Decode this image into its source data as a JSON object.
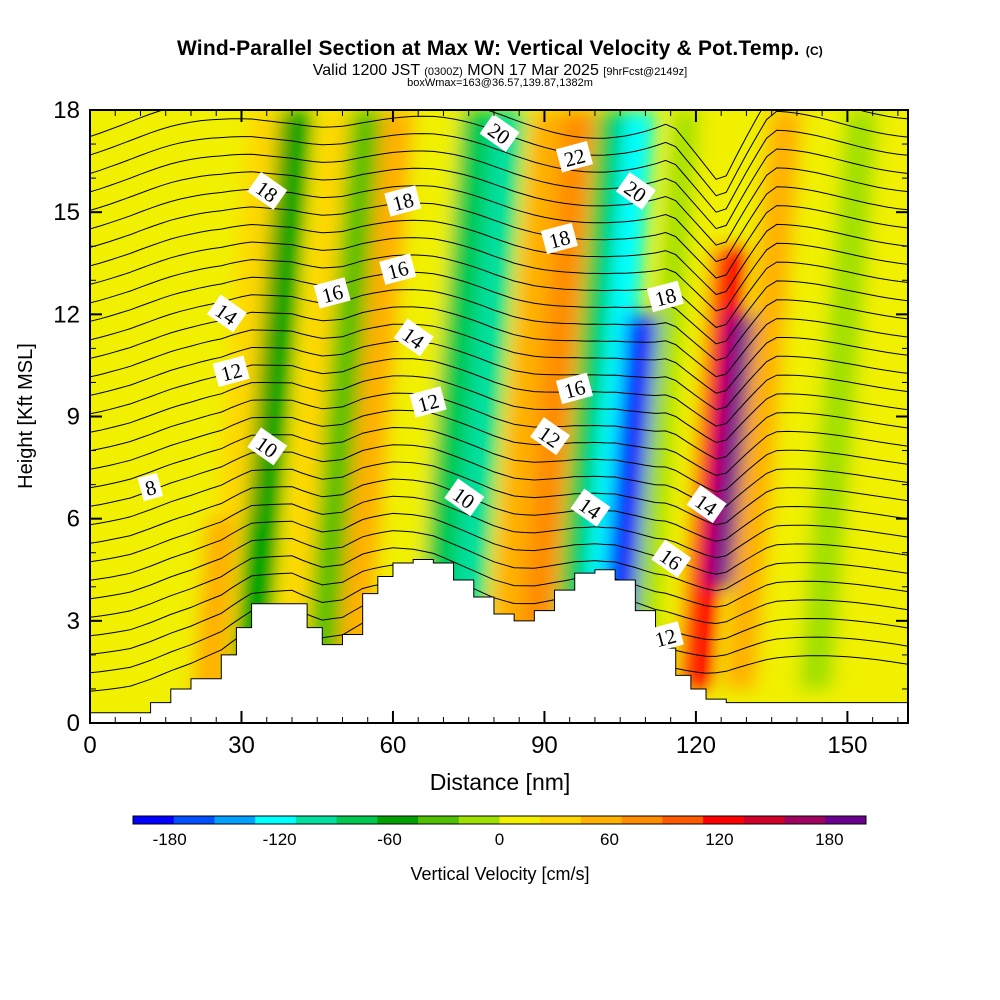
{
  "title": {
    "main": "Wind-Parallel Section at Max W: Vertical Velocity & Pot.Temp.",
    "copyright": "(C)",
    "valid_prefix": "Valid 1200 JST",
    "valid_utc": "(0300Z)",
    "valid_date": "MON 17 Mar 2025",
    "forecast": "[9hrFcst@2149z]",
    "box_info": "boxWmax=163@36.57,139.87,1382m"
  },
  "colorbar": {
    "label": "Vertical Velocity [cm/s]",
    "tick_labels": [
      "-180",
      "-120",
      "-60",
      "0",
      "60",
      "120",
      "180"
    ],
    "tick_values": [
      -180,
      -120,
      -60,
      0,
      60,
      120,
      180
    ],
    "range": [
      -200,
      200
    ],
    "colors": [
      "#0000ff",
      "#0050ff",
      "#00a0ff",
      "#00ffff",
      "#00e0a0",
      "#00c850",
      "#00a000",
      "#50c000",
      "#a0e000",
      "#f0f000",
      "#ffd700",
      "#ffb000",
      "#ff8c00",
      "#ff5a00",
      "#ff0000",
      "#d0002a",
      "#a00060",
      "#6a0090"
    ]
  },
  "chart_data": {
    "type": "heatmap",
    "title": "Wind-Parallel Section at Max W: Vertical Velocity & Pot.Temp.",
    "xlabel": "Distance [nm]",
    "ylabel": "Height [Kft MSL]",
    "xlim": [
      0,
      162
    ],
    "ylim": [
      0,
      18
    ],
    "x_ticks": [
      "0",
      "30",
      "60",
      "90",
      "120",
      "150"
    ],
    "y_ticks": [
      "0",
      "3",
      "6",
      "9",
      "12",
      "15",
      "18"
    ],
    "terrain_profile": {
      "x": [
        0,
        8,
        12,
        16,
        20,
        26,
        29,
        32,
        36,
        40,
        43,
        46,
        50,
        54,
        57,
        60,
        64,
        68,
        72,
        76,
        80,
        84,
        88,
        92,
        96,
        100,
        104,
        108,
        112,
        116,
        119,
        122,
        126,
        130,
        140,
        150,
        162
      ],
      "height_kft": [
        0.3,
        0.3,
        0.6,
        1.0,
        1.3,
        2.0,
        2.8,
        3.5,
        3.5,
        3.5,
        2.8,
        2.3,
        2.6,
        3.8,
        4.3,
        4.7,
        4.8,
        4.7,
        4.2,
        3.7,
        3.2,
        3.0,
        3.3,
        3.9,
        4.4,
        4.5,
        4.2,
        3.3,
        2.2,
        1.4,
        1.0,
        0.7,
        0.6,
        0.6,
        0.6,
        0.6,
        0.6
      ]
    },
    "vertical_velocity_cells": [
      {
        "x": 0,
        "z_range": [
          0,
          18
        ],
        "w": 10
      },
      {
        "x": 10,
        "z_range": [
          0,
          18
        ],
        "w": 10
      },
      {
        "x": 20,
        "z_range": [
          0,
          18
        ],
        "w": 10
      },
      {
        "x": 28,
        "z_range": [
          0,
          6
        ],
        "w": 60
      },
      {
        "x": 30,
        "z_range": [
          6,
          18
        ],
        "w": 40
      },
      {
        "x": 36,
        "z_range": [
          1,
          18
        ],
        "w": -60
      },
      {
        "x": 44,
        "z_range": [
          1,
          18
        ],
        "w": 40
      },
      {
        "x": 50,
        "z_range": [
          1,
          18
        ],
        "w": -40
      },
      {
        "x": 56,
        "z_range": [
          1,
          18
        ],
        "w": 60
      },
      {
        "x": 65,
        "z_range": [
          3,
          18
        ],
        "w": 20
      },
      {
        "x": 72,
        "z_range": [
          3,
          18
        ],
        "w": -80
      },
      {
        "x": 78,
        "z_range": [
          3,
          18
        ],
        "w": -110
      },
      {
        "x": 86,
        "z_range": [
          2,
          18
        ],
        "w": 50
      },
      {
        "x": 92,
        "z_range": [
          2,
          18
        ],
        "w": 70
      },
      {
        "x": 99,
        "z_range": [
          3,
          18
        ],
        "w": -70
      },
      {
        "x": 104,
        "z_range": [
          3,
          18
        ],
        "w": -130
      },
      {
        "x": 108,
        "z_range": [
          2,
          12
        ],
        "w": -180
      },
      {
        "x": 114,
        "z_range": [
          1,
          18
        ],
        "w": -20
      },
      {
        "x": 119,
        "z_range": [
          1,
          18
        ],
        "w": 10
      },
      {
        "x": 124,
        "z_range": [
          1,
          14
        ],
        "w": 130
      },
      {
        "x": 128,
        "z_range": [
          4,
          12
        ],
        "w": 200
      },
      {
        "x": 133,
        "z_range": [
          1,
          18
        ],
        "w": 60
      },
      {
        "x": 140,
        "z_range": [
          1,
          18
        ],
        "w": 0
      },
      {
        "x": 148,
        "z_range": [
          1,
          18
        ],
        "w": -20
      },
      {
        "x": 156,
        "z_range": [
          1,
          18
        ],
        "w": 0
      }
    ],
    "theta_contour_labels": [
      {
        "text": "8",
        "x": 12,
        "y": 6.9
      },
      {
        "text": "10",
        "x": 35,
        "y": 8.1
      },
      {
        "text": "12",
        "x": 28,
        "y": 10.3
      },
      {
        "text": "14",
        "x": 27,
        "y": 12.0
      },
      {
        "text": "16",
        "x": 48,
        "y": 12.6
      },
      {
        "text": "18",
        "x": 35,
        "y": 15.6
      },
      {
        "text": "16",
        "x": 61,
        "y": 13.3
      },
      {
        "text": "14",
        "x": 64,
        "y": 11.3
      },
      {
        "text": "12",
        "x": 67,
        "y": 9.4
      },
      {
        "text": "10",
        "x": 74,
        "y": 6.6
      },
      {
        "text": "18",
        "x": 62,
        "y": 15.3
      },
      {
        "text": "20",
        "x": 81,
        "y": 17.3
      },
      {
        "text": "22",
        "x": 96,
        "y": 16.6
      },
      {
        "text": "20",
        "x": 108,
        "y": 15.6
      },
      {
        "text": "18",
        "x": 93,
        "y": 14.2
      },
      {
        "text": "12",
        "x": 91,
        "y": 8.4
      },
      {
        "text": "16",
        "x": 96,
        "y": 9.8
      },
      {
        "text": "14",
        "x": 99,
        "y": 6.3
      },
      {
        "text": "18",
        "x": 114,
        "y": 12.5
      },
      {
        "text": "16",
        "x": 115,
        "y": 4.8
      },
      {
        "text": "12",
        "x": 114,
        "y": 2.5
      },
      {
        "text": "14",
        "x": 122,
        "y": 6.4
      }
    ]
  }
}
